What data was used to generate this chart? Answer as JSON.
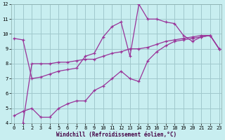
{
  "xlabel": "Windchill (Refroidissement éolien,°C)",
  "bg_color": "#c8eef0",
  "grid_color": "#a0c8cc",
  "line_color": "#993399",
  "line1_x": [
    0,
    1,
    2,
    3,
    4,
    5,
    6,
    7,
    8,
    9,
    10,
    11,
    12,
    13,
    14,
    15,
    16,
    17,
    18,
    19,
    20,
    21,
    22,
    23
  ],
  "line1_y": [
    9.7,
    9.6,
    7.0,
    7.1,
    7.3,
    7.5,
    7.6,
    7.7,
    8.5,
    8.7,
    9.8,
    10.5,
    10.8,
    8.5,
    12.0,
    11.0,
    11.0,
    10.8,
    10.7,
    9.9,
    9.5,
    9.8,
    9.9,
    9.0
  ],
  "line2_x": [
    0,
    1,
    2,
    3,
    4,
    5,
    6,
    7,
    8,
    9,
    10,
    11,
    12,
    13,
    14,
    15,
    16,
    17,
    18,
    19,
    20,
    21,
    22,
    23
  ],
  "line2_y": [
    4.5,
    4.8,
    5.0,
    4.4,
    4.4,
    5.0,
    5.3,
    5.5,
    5.5,
    6.2,
    6.5,
    7.0,
    7.5,
    7.0,
    6.8,
    8.2,
    8.8,
    9.2,
    9.5,
    9.6,
    9.7,
    9.8,
    9.9,
    9.0
  ],
  "line3_x": [
    0,
    1,
    2,
    3,
    4,
    5,
    6,
    7,
    8,
    9,
    10,
    11,
    12,
    13,
    14,
    15,
    16,
    17,
    18,
    19,
    20,
    21,
    22,
    23
  ],
  "line3_y": [
    3.5,
    4.0,
    8.0,
    8.0,
    8.0,
    8.1,
    8.1,
    8.2,
    8.3,
    8.3,
    8.5,
    8.7,
    8.8,
    9.0,
    9.0,
    9.1,
    9.3,
    9.5,
    9.6,
    9.7,
    9.8,
    9.9,
    9.9,
    9.0
  ],
  "xlim": [
    -0.3,
    23.3
  ],
  "ylim": [
    4,
    12
  ],
  "xticks": [
    0,
    1,
    2,
    3,
    4,
    5,
    6,
    7,
    8,
    9,
    10,
    11,
    12,
    13,
    14,
    15,
    16,
    17,
    18,
    19,
    20,
    21,
    22,
    23
  ],
  "yticks": [
    4,
    5,
    6,
    7,
    8,
    9,
    10,
    11,
    12
  ],
  "tick_fontsize": 5,
  "xlabel_fontsize": 5.5,
  "lw": 0.9,
  "ms": 3.0
}
